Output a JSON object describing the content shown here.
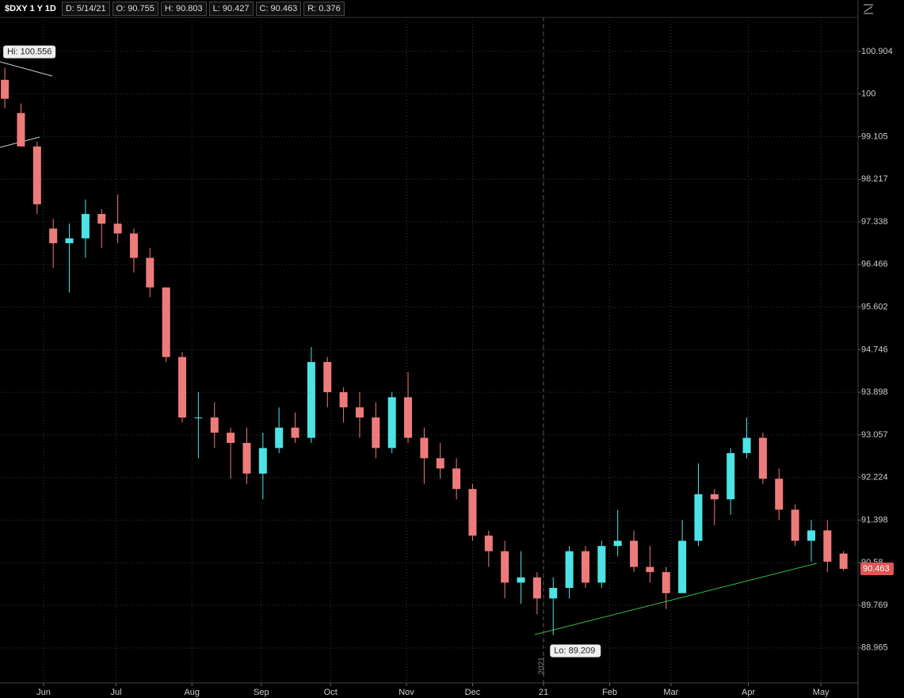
{
  "chart_data": {
    "type": "candlestick",
    "header": [
      "$DXY 1 Y 1D",
      "D: 5/14/21",
      "O: 90.755",
      "H: 90.803",
      "L: 90.427",
      "C: 90.463",
      "R: 0.376"
    ],
    "up_color": "#4de3e6",
    "down_color": "#ee7b7b",
    "ohlc": [
      [
        100.3,
        100.556,
        99.7,
        99.9
      ],
      [
        99.6,
        99.8,
        98.9,
        98.9
      ],
      [
        98.9,
        99.0,
        97.5,
        97.7
      ],
      [
        97.2,
        97.4,
        96.4,
        96.9
      ],
      [
        96.9,
        97.3,
        95.9,
        97.0
      ],
      [
        97.0,
        97.8,
        96.6,
        97.5
      ],
      [
        97.5,
        97.6,
        96.8,
        97.3
      ],
      [
        97.3,
        97.9,
        96.9,
        97.1
      ],
      [
        97.1,
        97.2,
        96.3,
        96.6
      ],
      [
        96.6,
        96.8,
        95.8,
        96.0
      ],
      [
        96.0,
        96.0,
        94.5,
        94.6
      ],
      [
        94.6,
        94.7,
        93.3,
        93.4
      ],
      [
        93.4,
        93.9,
        92.6,
        93.4
      ],
      [
        93.4,
        93.7,
        92.8,
        93.1
      ],
      [
        93.1,
        93.2,
        92.2,
        92.9
      ],
      [
        92.9,
        93.2,
        92.1,
        92.3
      ],
      [
        92.3,
        93.1,
        91.8,
        92.8
      ],
      [
        92.8,
        93.6,
        92.7,
        93.2
      ],
      [
        93.2,
        93.5,
        92.9,
        93.0
      ],
      [
        93.0,
        94.8,
        92.9,
        94.5
      ],
      [
        94.5,
        94.6,
        93.6,
        93.9
      ],
      [
        93.9,
        94.0,
        93.3,
        93.6
      ],
      [
        93.6,
        93.9,
        93.0,
        93.4
      ],
      [
        93.4,
        93.7,
        92.6,
        92.8
      ],
      [
        92.8,
        93.9,
        92.7,
        93.8
      ],
      [
        93.8,
        94.3,
        92.9,
        93.0
      ],
      [
        93.0,
        93.2,
        92.1,
        92.6
      ],
      [
        92.6,
        92.9,
        92.2,
        92.4
      ],
      [
        92.4,
        92.6,
        91.8,
        92.0
      ],
      [
        92.0,
        92.1,
        91.0,
        91.1
      ],
      [
        91.1,
        91.2,
        90.5,
        90.8
      ],
      [
        90.8,
        91.0,
        89.9,
        90.2
      ],
      [
        90.2,
        90.8,
        89.8,
        90.3
      ],
      [
        90.3,
        90.4,
        89.6,
        89.9
      ],
      [
        89.9,
        90.3,
        89.209,
        90.1
      ],
      [
        90.1,
        90.9,
        89.9,
        90.8
      ],
      [
        90.8,
        90.9,
        90.1,
        90.2
      ],
      [
        90.2,
        91.0,
        90.1,
        90.9
      ],
      [
        90.9,
        91.6,
        90.7,
        91.0
      ],
      [
        91.0,
        91.2,
        90.4,
        90.5
      ],
      [
        90.5,
        90.9,
        90.2,
        90.4
      ],
      [
        90.4,
        90.5,
        89.7,
        90.0
      ],
      [
        90.0,
        91.4,
        90.0,
        91.0
      ],
      [
        91.0,
        92.5,
        90.9,
        91.9
      ],
      [
        91.9,
        92.0,
        91.3,
        91.8
      ],
      [
        91.8,
        92.8,
        91.5,
        92.7
      ],
      [
        92.7,
        93.4,
        92.6,
        93.0
      ],
      [
        93.0,
        93.1,
        92.1,
        92.2
      ],
      [
        92.2,
        92.4,
        91.4,
        91.6
      ],
      [
        91.6,
        91.7,
        90.9,
        91.0
      ],
      [
        91.0,
        91.4,
        90.6,
        91.2
      ],
      [
        91.2,
        91.4,
        90.4,
        90.6
      ],
      [
        90.755,
        90.803,
        90.427,
        90.463
      ]
    ],
    "xlim": [
      -0.3,
      52.9
    ],
    "xticks": [
      {
        "value": 2.4,
        "label": "Jun"
      },
      {
        "value": 6.9,
        "label": "Jul"
      },
      {
        "value": 11.6,
        "label": "Aug"
      },
      {
        "value": 15.9,
        "label": "Sep"
      },
      {
        "value": 20.2,
        "label": "Oct"
      },
      {
        "value": 24.9,
        "label": "Nov"
      },
      {
        "value": 29,
        "label": "Dec"
      },
      {
        "value": 33.4,
        "label": "21"
      },
      {
        "value": 37.5,
        "label": "Feb"
      },
      {
        "value": 41.3,
        "label": "Mar"
      },
      {
        "value": 46.1,
        "label": "Apr"
      },
      {
        "value": 50.6,
        "label": "May"
      }
    ],
    "ylim": [
      88.31,
      101.63
    ],
    "log_scale": true,
    "grid": true,
    "yticks": [
      88.965,
      89.769,
      90.58,
      91.398,
      92.224,
      93.057,
      93.898,
      94.746,
      95.602,
      96.466,
      97.338,
      98.217,
      99.105,
      100,
      100.904
    ],
    "high_label": "Hi: 100.556",
    "low_label": "Lo: 89.209",
    "year_marker": "2021",
    "last_price": 90.463
  }
}
